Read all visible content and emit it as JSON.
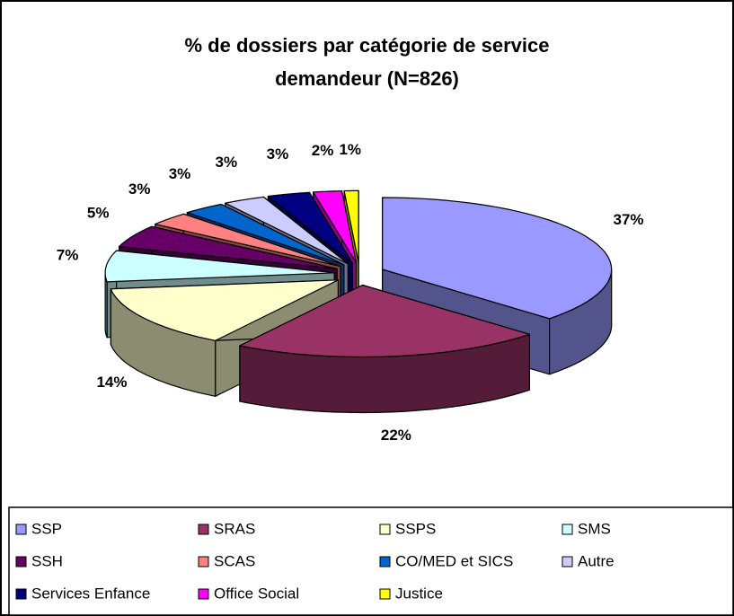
{
  "chart_data": {
    "type": "pie3d",
    "title": "% de dossiers par catégorie de service demandeur (N=826)",
    "categories": [
      "SSP",
      "SRAS",
      "SSPS",
      "SMS",
      "SSH",
      "SCAS",
      "CO/MED et SICS",
      "Autre",
      "Services Enfance",
      "Office Social",
      "Justice"
    ],
    "values": [
      37,
      22,
      14,
      7,
      5,
      3,
      3,
      3,
      3,
      2,
      1
    ],
    "value_labels": [
      "37%",
      "22%",
      "14%",
      "7%",
      "5%",
      "3%",
      "3%",
      "3%",
      "3%",
      "2%",
      "1%"
    ],
    "colors": [
      "#9999ff",
      "#993366",
      "#ffffcc",
      "#ccffff",
      "#660066",
      "#ff8080",
      "#0066cc",
      "#ccccff",
      "#000080",
      "#ff00ff",
      "#ffff00"
    ],
    "legend": "bottom"
  }
}
